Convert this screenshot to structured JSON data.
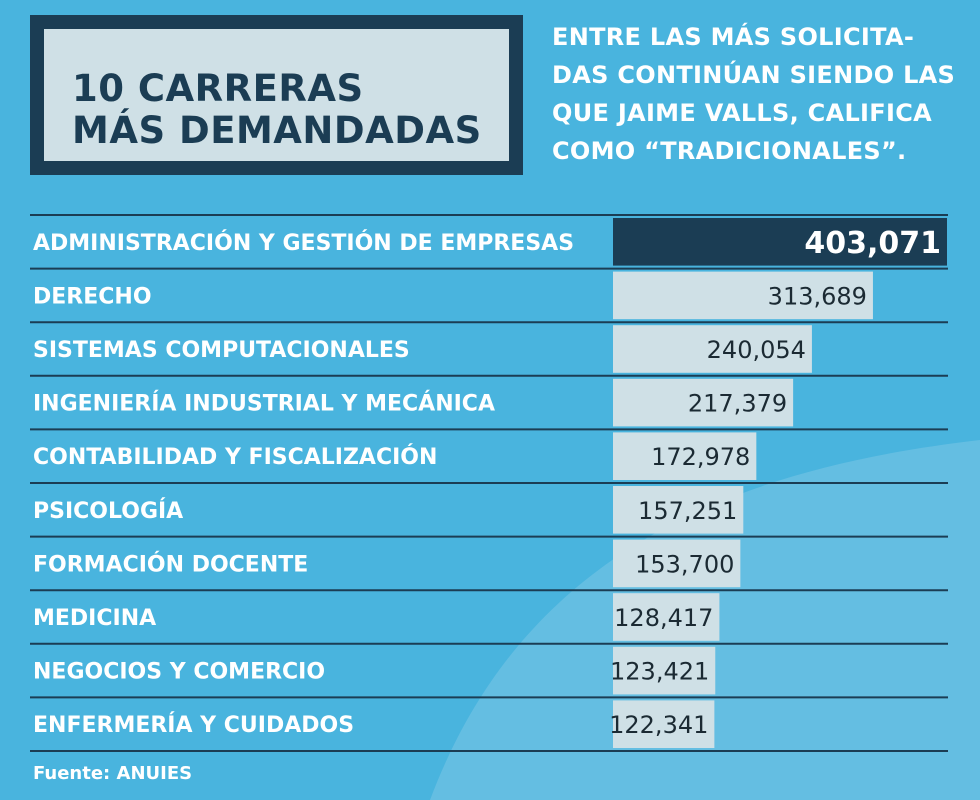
{
  "header": {
    "title_line1": "10 CARRERAS",
    "title_line2": "MÁS DEMANDADAS",
    "subtitle_lines": [
      "ENTRE LAS MÁS SOLICITA-",
      "DAS CONTINÚAN SIENDO LAS",
      "QUE JAIME VALLS, CALIFICA",
      "COMO “TRADICIONALES”."
    ]
  },
  "colors": {
    "background": "#49b4de",
    "dark": "#1b3d54",
    "bar_light": "#cfe0e6",
    "text_light": "#ffffff"
  },
  "chart_data": {
    "type": "bar",
    "orientation": "horizontal",
    "title": "10 CARRERAS MÁS DEMANDADAS",
    "categories": [
      "ADMINISTRACIÓN Y GESTIÓN DE EMPRESAS",
      "DERECHO",
      "SISTEMAS COMPUTACIONALES",
      "INGENIERÍA INDUSTRIAL Y MECÁNICA",
      "CONTABILIDAD Y FISCALIZACIÓN",
      "PSICOLOGÍA",
      "FORMACIÓN DOCENTE",
      "MEDICINA",
      "NEGOCIOS Y COMERCIO",
      "ENFERMERÍA Y CUIDADOS"
    ],
    "values": [
      403071,
      313689,
      240054,
      217379,
      172978,
      157251,
      153700,
      128417,
      123421,
      122341
    ],
    "value_labels": [
      "403,071",
      "313,689",
      "240,054",
      "217,379",
      "172,978",
      "157,251",
      "153,700",
      "128,417",
      "123,421",
      "122,341"
    ],
    "highlight_index": 0
  },
  "footer": {
    "source": "Fuente: ANUIES"
  }
}
